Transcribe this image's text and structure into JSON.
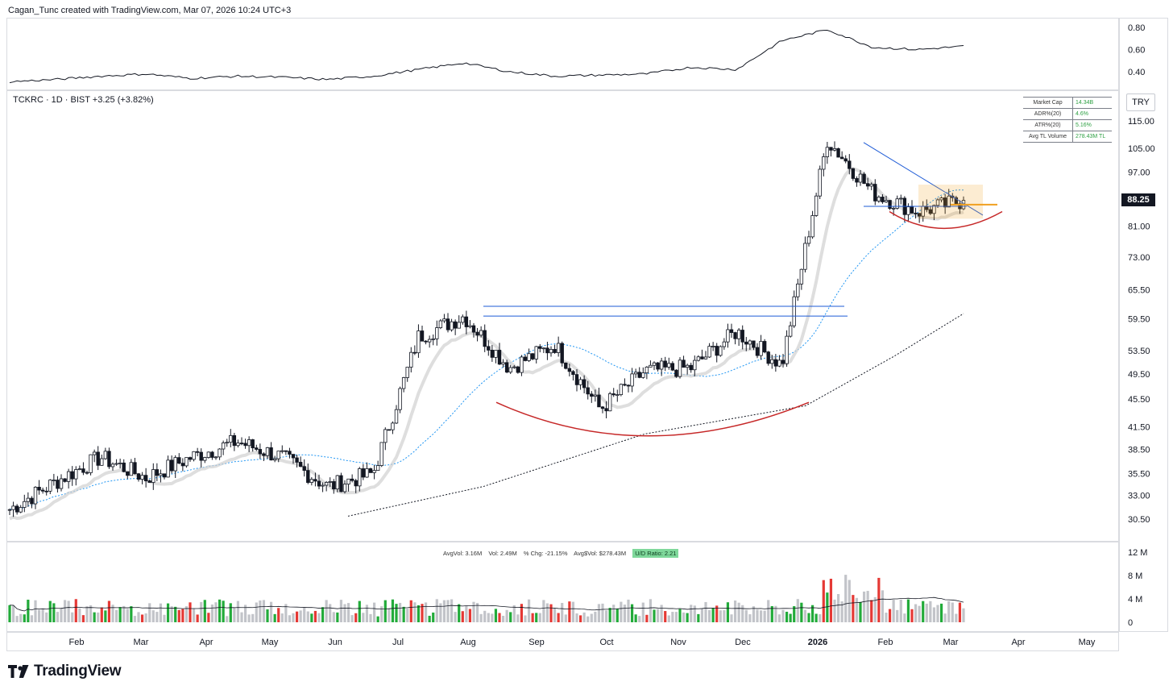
{
  "attribution": "Cagan_Tunc created with TradingView.com, Mar 07, 2026 10:24 UTC+3",
  "legend": "TCKRC · 1D · BIST  +3.25 (+3.82%)",
  "currency": "TRY",
  "last_price": "88.25",
  "stats": [
    {
      "label": "Market Cap",
      "value": "14.34B"
    },
    {
      "label": "ADR%(20)",
      "value": "4.6%"
    },
    {
      "label": "ATR%(20)",
      "value": "5.16%"
    },
    {
      "label": "Avg TL Volume",
      "value": "278.43M TL"
    }
  ],
  "volume_legend": {
    "avg_vol": "AvgVol: 3.16M",
    "vol": "Vol: 2.49M",
    "chg": "% Chg: -21.15%",
    "avg_dollar": "Avg$Vol: $278.43M",
    "ud_ratio": "U/D Ratio: 2.21"
  },
  "logo_text": "TradingView",
  "colors": {
    "up": "#ffffff",
    "down": "#131722",
    "vol_up": "#22ab3a",
    "vol_down": "#e53935",
    "vol_neutral": "#c2c4c9",
    "ma50": "#2196f3",
    "ma200": "#131722",
    "trend_blue": "#1e5bd6",
    "arc_red": "#c62828",
    "orange": "#f0a020"
  },
  "chart_data": {
    "type": "candlestick",
    "y_axis_ticks": [
      "115.00",
      "105.00",
      "97.00",
      "88.25",
      "81.00",
      "73.00",
      "65.50",
      "59.50",
      "53.50",
      "49.50",
      "45.50",
      "41.50",
      "38.50",
      "35.50",
      "33.00",
      "30.50"
    ],
    "y_scale": "log",
    "x_axis_ticks": [
      "Feb",
      "Mar",
      "Apr",
      "May",
      "Jun",
      "Jul",
      "Aug",
      "Sep",
      "Oct",
      "Nov",
      "Dec",
      "2026",
      "Feb",
      "Mar",
      "Apr",
      "May"
    ],
    "indicator_ticks": [
      "0.80",
      "0.60",
      "0.40"
    ],
    "volume_ticks": [
      "12 M",
      "8 M",
      "4 M",
      "0"
    ],
    "close_path": [
      {
        "t": "Jan",
        "close": 31.5
      },
      {
        "t": "Feb",
        "close": 34.5
      },
      {
        "t": "Mar",
        "close": 37.5
      },
      {
        "t": "Mar",
        "close": 35.0
      },
      {
        "t": "Apr",
        "close": 37.5
      },
      {
        "t": "May",
        "close": 39.5
      },
      {
        "t": "Jun",
        "close": 37.5
      },
      {
        "t": "Jun",
        "close": 34.0
      },
      {
        "t": "Jul",
        "close": 35.5
      },
      {
        "t": "Aug",
        "close": 56.0
      },
      {
        "t": "Aug",
        "close": 60.0
      },
      {
        "t": "Sep",
        "close": 50.5
      },
      {
        "t": "Sep",
        "close": 54.5
      },
      {
        "t": "Oct",
        "close": 44.0
      },
      {
        "t": "Nov",
        "close": 50.0
      },
      {
        "t": "Nov",
        "close": 50.5
      },
      {
        "t": "Dec",
        "close": 57.0
      },
      {
        "t": "Dec",
        "close": 51.0
      },
      {
        "t": "Jan",
        "close": 108.0
      },
      {
        "t": "Feb",
        "close": 90.5
      },
      {
        "t": "Mar",
        "close": 85.0
      },
      {
        "t": "Mar",
        "close": 88.25
      }
    ],
    "ma_long": [
      {
        "t": "Jun",
        "value": 30.8
      },
      {
        "t": "Aug",
        "value": 34.0
      },
      {
        "t": "Oct",
        "value": 40.5
      },
      {
        "t": "Dec",
        "value": 44.5
      },
      {
        "t": "Feb",
        "value": 52.5
      },
      {
        "t": "Mar",
        "value": 60.5
      }
    ],
    "indicator": [
      0.31,
      0.33,
      0.36,
      0.38,
      0.34,
      0.36,
      0.35,
      0.33,
      0.36,
      0.42,
      0.48,
      0.4,
      0.36,
      0.37,
      0.38,
      0.44,
      0.42,
      0.68,
      0.78,
      0.62,
      0.6,
      0.63
    ]
  }
}
